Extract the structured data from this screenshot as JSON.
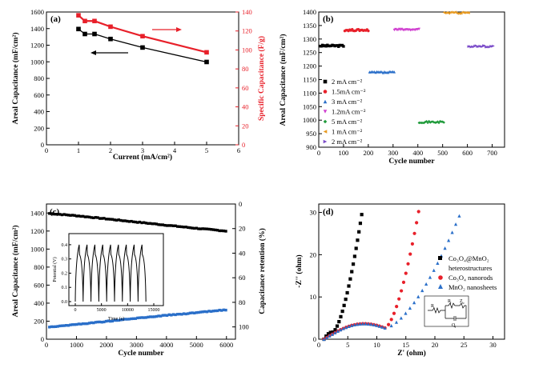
{
  "chart_data": [
    {
      "panel": "(a)",
      "type": "line",
      "xlabel": "Current (mA/cm²)",
      "ylabel": "Areal Capacitance (mF/cm²)",
      "y2label": "Specific Capacitance (F/g)",
      "xlim": [
        0,
        6
      ],
      "ylim": [
        0,
        1600
      ],
      "y2lim": [
        0,
        140
      ],
      "xticks": [
        "0",
        "1",
        "2",
        "3",
        "4",
        "5",
        "6"
      ],
      "yticks": [
        "0",
        "200",
        "400",
        "600",
        "800",
        "1000",
        "1200",
        "1400",
        "1600"
      ],
      "y2ticks": [
        "0",
        "20",
        "40",
        "60",
        "80",
        "100",
        "120",
        "140"
      ],
      "series": [
        {
          "name": "Areal capacitance",
          "axis": "left",
          "color": "#000000",
          "x": [
            1,
            1.2,
            1.5,
            2,
            3,
            5
          ],
          "values": [
            1395,
            1335,
            1335,
            1275,
            1172,
            998
          ]
        },
        {
          "name": "Specific capacitance",
          "axis": "right",
          "color": "#e8202a",
          "x": [
            1,
            1.2,
            1.5,
            2,
            3,
            5
          ],
          "values": [
            136.5,
            130.5,
            130.5,
            124.5,
            114.5,
            97.5
          ]
        }
      ]
    },
    {
      "panel": "(b)",
      "type": "scatter",
      "xlabel": "Cycle number",
      "ylabel": "Areal Capacitance (mF/cm²)",
      "xlim": [
        0,
        750
      ],
      "ylim": [
        900,
        1400
      ],
      "xticks": [
        "0",
        "100",
        "200",
        "300",
        "400",
        "500",
        "600",
        "700"
      ],
      "yticks": [
        "900",
        "950",
        "1000",
        "1050",
        "1100",
        "1150",
        "1200",
        "1250",
        "1300",
        "1350",
        "1400"
      ],
      "series": [
        {
          "name": "2 mA cm⁻²",
          "marker": "square",
          "color": "#000000",
          "x_range": [
            5,
            100
          ],
          "value": 1275
        },
        {
          "name": "1.5mA cm⁻²",
          "marker": "circle",
          "color": "#e8202a",
          "x_range": [
            105,
            200
          ],
          "value": 1333
        },
        {
          "name": "3 mA cm⁻²",
          "marker": "triangle-up",
          "color": "#2a6fc9",
          "x_range": [
            205,
            305
          ],
          "value": 1177
        },
        {
          "name": "1.2mA cm⁻²",
          "marker": "triangle-down",
          "color": "#d040d0",
          "x_range": [
            305,
            405
          ],
          "value": 1334
        },
        {
          "name": "5 mA cm⁻²",
          "marker": "diamond",
          "color": "#1f9a3a",
          "x_range": [
            405,
            505
          ],
          "value": 993
        },
        {
          "name": "1 mA cm⁻²",
          "marker": "triangle-left",
          "color": "#e89a20",
          "x_range": [
            505,
            605
          ],
          "value": 1397
        },
        {
          "name": "2 mA cm⁻²",
          "marker": "triangle-right",
          "color": "#7b4cc9",
          "x_range": [
            605,
            705
          ],
          "value": 1273
        }
      ]
    },
    {
      "panel": "(c)",
      "type": "scatter",
      "xlabel": "Cycle number",
      "ylabel": "Areal Capacitance (mF/cm²)",
      "y2label": "Capacitance retention (%)",
      "xlim": [
        0,
        6300
      ],
      "ylim": [
        0,
        1500
      ],
      "y2lim": [
        110,
        0
      ],
      "xticks": [
        "0",
        "1000",
        "2000",
        "3000",
        "4000",
        "5000",
        "6000"
      ],
      "yticks": [
        "0",
        "200",
        "400",
        "600",
        "800",
        "1000",
        "1200",
        "1400"
      ],
      "y2ticks": [
        "0",
        "20",
        "40",
        "60",
        "80",
        "100"
      ],
      "series": [
        {
          "name": "Areal capacitance",
          "axis": "left",
          "color": "#000000",
          "x": [
            100,
            1000,
            2000,
            3000,
            4000,
            5000,
            6000
          ],
          "values": [
            1395,
            1370,
            1335,
            1300,
            1265,
            1230,
            1200
          ]
        },
        {
          "name": "Capacitance retention",
          "axis": "right",
          "color": "#2a6fc9",
          "x": [
            100,
            1000,
            2000,
            3000,
            4000,
            5000,
            6000
          ],
          "values": [
            100,
            98,
            95.5,
            93,
            90.5,
            88.5,
            86
          ]
        }
      ],
      "inset": {
        "type": "line",
        "xlabel": "Time (s)",
        "ylabel": "Potential (V)",
        "xticks": [
          "0",
          "5000",
          "10000",
          "15000"
        ],
        "yticks": [
          "0.0",
          "0.1",
          "0.2",
          "0.3",
          "0.4"
        ],
        "cycles": 9
      }
    },
    {
      "panel": "(d)",
      "type": "scatter",
      "xlabel": "Z' (ohm)",
      "ylabel": "-Z'' (ohm)",
      "xlim": [
        0,
        32
      ],
      "ylim": [
        0,
        32
      ],
      "xticks": [
        "0",
        "5",
        "10",
        "15",
        "20",
        "25",
        "30"
      ],
      "yticks": [
        "0",
        "10",
        "20",
        "30"
      ],
      "series": [
        {
          "name": "Co₃O₄@MnO₂",
          "name_line2": "heterostructures",
          "marker": "square",
          "color": "#000000"
        },
        {
          "name": "Co₃O₄ nanorods",
          "marker": "circle",
          "color": "#e8202a"
        },
        {
          "name": "MnO₂ nanosheets",
          "marker": "triangle-up",
          "color": "#2a6fc9"
        }
      ],
      "circuit_labels": [
        "R",
        "R",
        "Z",
        "Q"
      ],
      "circuit_subscripts": [
        "s",
        "f",
        "w",
        "l"
      ]
    }
  ]
}
